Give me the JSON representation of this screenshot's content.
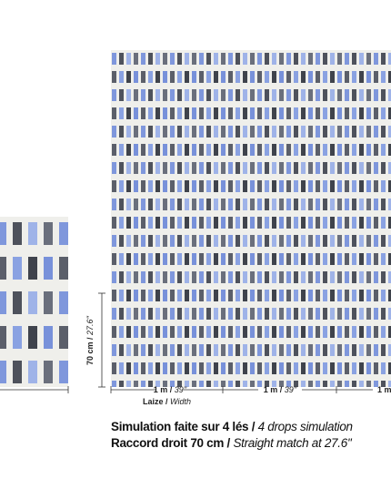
{
  "dimensions": {
    "height": {
      "metric": "70 cm /",
      "imperial": "27.6''"
    },
    "widths": [
      {
        "metric": "1 m /",
        "imperial": "39''"
      },
      {
        "metric": "1 m /",
        "imperial": "39''"
      },
      {
        "metric": "1 m"
      }
    ],
    "laize": {
      "fr": "Laize /",
      "en": "Width"
    }
  },
  "caption": [
    {
      "fr": "Simulation faite sur 4 lés /",
      "en": "4 drops simulation"
    },
    {
      "fr": "Raccord droit 70 cm /",
      "en": "Straight match at 27.6''"
    }
  ]
}
